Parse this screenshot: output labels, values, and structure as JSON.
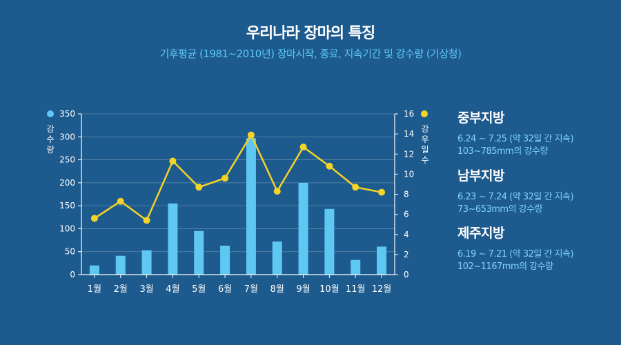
{
  "title": "우리나라 장마의 특징",
  "subtitle": "기후평균 (1981~2010년) 장마시작, 종료, 지속기간 및 강수량 (기상청)",
  "colors": {
    "background": "#1d5a8d",
    "bar": "#5ec8f2",
    "line": "#f5d327",
    "text": "#ffffff",
    "accent_text": "#7fd4f7"
  },
  "chart_data": {
    "type": "bar+line",
    "categories": [
      "1월",
      "2월",
      "3월",
      "4월",
      "5월",
      "6월",
      "7월",
      "8월",
      "9월",
      "10월",
      "11월",
      "12월"
    ],
    "series": [
      {
        "name": "강수량",
        "type": "bar",
        "axis": "left",
        "values": [
          20,
          41,
          53,
          155,
          95,
          63,
          297,
          72,
          200,
          143,
          32,
          61
        ]
      },
      {
        "name": "강우일수",
        "type": "line",
        "axis": "right",
        "values": [
          5.6,
          7.3,
          5.4,
          11.3,
          8.7,
          9.6,
          13.9,
          8.3,
          12.7,
          10.8,
          8.7,
          8.2
        ]
      }
    ],
    "y_left": {
      "label": "강수량",
      "ylim": [
        0,
        350
      ],
      "ticks": [
        "0",
        "50",
        "100",
        "150",
        "200",
        "250",
        "300",
        "350"
      ]
    },
    "y_right": {
      "label": "강우일수",
      "ylim": [
        0,
        16
      ],
      "ticks": [
        "0",
        "2",
        "4",
        "6",
        "8",
        "10",
        "12",
        "14",
        "16"
      ]
    },
    "grid": true
  },
  "annotations": [
    {
      "region": "중부지방",
      "period": "6.24 ~ 7.25 (약 32일 간 지속)",
      "rain": "103~785mm의 강수량"
    },
    {
      "region": "남부지방",
      "period": "6.23 ~ 7.24 (약 32일 간 지속)",
      "rain": "73~653mm의 강수량"
    },
    {
      "region": "제주지방",
      "period": "6.19 ~ 7.21 (약 32일 간 지속)",
      "rain": "102~1167mm의 강수량"
    }
  ]
}
